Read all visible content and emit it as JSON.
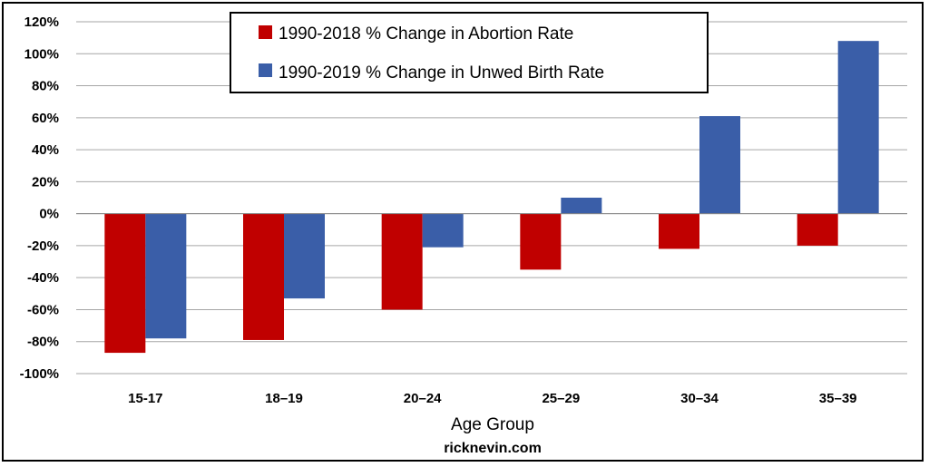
{
  "chart_data": {
    "type": "bar",
    "categories": [
      "15-17",
      "18–19",
      "20–24",
      "25–29",
      "30–34",
      "35–39"
    ],
    "series": [
      {
        "name": "1990-2018 % Change in Abortion Rate",
        "color": "#c00000",
        "values": [
          -87,
          -79,
          -60,
          -35,
          -22,
          -20
        ]
      },
      {
        "name": "1990-2019 % Change in Unwed Birth Rate",
        "color": "#3a5ea8",
        "values": [
          -78,
          -53,
          -21,
          10,
          61,
          108
        ]
      }
    ],
    "xlabel": "Age Group",
    "ylabel": "",
    "ylim": [
      -100,
      120
    ],
    "yticks": [
      -100,
      -80,
      -60,
      -40,
      -20,
      0,
      20,
      40,
      60,
      80,
      100,
      120
    ],
    "ytick_labels": [
      "-100%",
      "-80%",
      "-60%",
      "-40%",
      "-20%",
      "0%",
      "20%",
      "40%",
      "60%",
      "80%",
      "100%",
      "120%"
    ],
    "grid": true,
    "legend_position": "top-center",
    "credit": "ricknevin.com"
  }
}
